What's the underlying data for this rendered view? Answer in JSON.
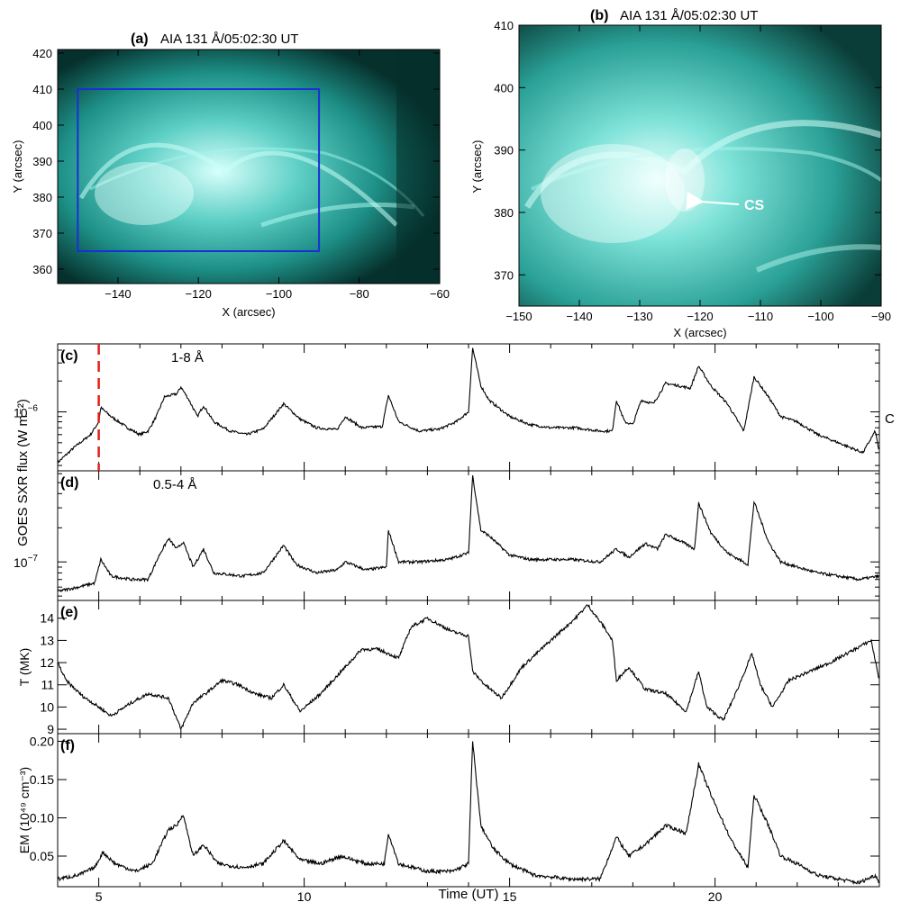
{
  "panels": {
    "a": {
      "label": "(a)",
      "title": "AIA 131 Å/05:02:30 UT",
      "xlabel": "X (arcsec)",
      "ylabel": "Y (arcsec)",
      "xlim": [
        -155,
        -60
      ],
      "ylim": [
        356,
        421
      ],
      "xticks": [
        "-140",
        "-120",
        "-100",
        "-80",
        "-60"
      ],
      "yticks": [
        "360",
        "370",
        "380",
        "390",
        "400",
        "410",
        "420"
      ],
      "box": {
        "x": [
          -150,
          -90
        ],
        "y": [
          365,
          410
        ],
        "color": "#1a2fd6"
      }
    },
    "b": {
      "label": "(b)",
      "title": "AIA 131 Å/05:02:30 UT",
      "xlabel": "X (arcsec)",
      "ylabel": "Y (arcsec)",
      "xlim": [
        -150,
        -90
      ],
      "ylim": [
        365,
        410
      ],
      "xticks": [
        "-150",
        "-140",
        "-130",
        "-120",
        "-110",
        "-100",
        "-90"
      ],
      "yticks": [
        "370",
        "380",
        "390",
        "400",
        "410"
      ],
      "annotation": "CS",
      "annotation_color": "#ffffff"
    }
  },
  "image_colors": {
    "dark": "#06302c",
    "mid": "#1d8f86",
    "bright": "#d8fffb"
  },
  "chart_data": {
    "type": "line",
    "x_label": "Time (UT)",
    "x_range": [
      4,
      24
    ],
    "x_ticks": [
      "5",
      "10",
      "15",
      "20"
    ],
    "marker_line": {
      "x": 5.0,
      "color": "#e0201a"
    },
    "shared_ylabel": "GOES SXR flux (W m⁻²)",
    "right_letter": "C",
    "series": [
      {
        "panel": "(c)",
        "name": "1-8 Å",
        "scale": "log",
        "y_tick_labels": [
          {
            "base": "10",
            "exp": "-6"
          }
        ],
        "data": [
          [
            4.0,
            3.2e-07
          ],
          [
            4.4,
            4.5e-07
          ],
          [
            4.8,
            6e-07
          ],
          [
            5.0,
            8e-07
          ],
          [
            5.05,
            1.1e-06
          ],
          [
            5.3,
            9e-07
          ],
          [
            5.7,
            7e-07
          ],
          [
            6.0,
            6e-07
          ],
          [
            6.2,
            6.5e-07
          ],
          [
            6.4,
            9e-07
          ],
          [
            6.6,
            1.4e-06
          ],
          [
            6.9,
            1.5e-06
          ],
          [
            7.0,
            1.75e-06
          ],
          [
            7.2,
            1.3e-06
          ],
          [
            7.4,
            9e-07
          ],
          [
            7.55,
            1.15e-06
          ],
          [
            7.8,
            8e-07
          ],
          [
            8.2,
            6.5e-07
          ],
          [
            8.6,
            6e-07
          ],
          [
            9.0,
            6.8e-07
          ],
          [
            9.5,
            1.2e-06
          ],
          [
            9.9,
            8.5e-07
          ],
          [
            10.3,
            7e-07
          ],
          [
            10.8,
            6.7e-07
          ],
          [
            11.0,
            9e-07
          ],
          [
            11.4,
            7e-07
          ],
          [
            11.9,
            7.2e-07
          ],
          [
            12.05,
            1.45e-06
          ],
          [
            12.3,
            8e-07
          ],
          [
            12.8,
            6.5e-07
          ],
          [
            13.3,
            6.8e-07
          ],
          [
            13.7,
            8e-07
          ],
          [
            14.0,
            1e-06
          ],
          [
            14.1,
            4.2e-06
          ],
          [
            14.3,
            1.8e-06
          ],
          [
            14.5,
            1.3e-06
          ],
          [
            15.0,
            9e-07
          ],
          [
            15.5,
            7.5e-07
          ],
          [
            16.0,
            7e-07
          ],
          [
            16.6,
            7e-07
          ],
          [
            17.2,
            6.5e-07
          ],
          [
            17.5,
            6.5e-07
          ],
          [
            17.6,
            1.3e-06
          ],
          [
            17.8,
            8e-07
          ],
          [
            18.0,
            7.5e-07
          ],
          [
            18.2,
            1.3e-06
          ],
          [
            18.5,
            1.2e-06
          ],
          [
            18.8,
            1.9e-06
          ],
          [
            19.1,
            1.8e-06
          ],
          [
            19.4,
            1.7e-06
          ],
          [
            19.6,
            2.8e-06
          ],
          [
            19.9,
            1.8e-06
          ],
          [
            20.3,
            1.2e-06
          ],
          [
            20.7,
            6.5e-07
          ],
          [
            20.95,
            2.2e-06
          ],
          [
            21.3,
            1.4e-06
          ],
          [
            21.6,
            9e-07
          ],
          [
            22.0,
            8e-07
          ],
          [
            22.5,
            6e-07
          ],
          [
            23.0,
            5e-07
          ],
          [
            23.6,
            4e-07
          ],
          [
            23.9,
            6.5e-07
          ],
          [
            24.0,
            4e-07
          ]
        ]
      },
      {
        "panel": "(d)",
        "name": "0.5-4 Å",
        "scale": "log",
        "y_tick_labels": [
          {
            "base": "10",
            "exp": "-7"
          }
        ],
        "data": [
          [
            4.0,
            5.5e-08
          ],
          [
            4.5,
            6e-08
          ],
          [
            4.9,
            6.5e-08
          ],
          [
            5.05,
            1.05e-07
          ],
          [
            5.3,
            7.5e-08
          ],
          [
            5.8,
            7e-08
          ],
          [
            6.2,
            7e-08
          ],
          [
            6.5,
            1.2e-07
          ],
          [
            6.7,
            1.6e-07
          ],
          [
            6.9,
            1.3e-07
          ],
          [
            7.05,
            1.5e-07
          ],
          [
            7.3,
            9e-08
          ],
          [
            7.55,
            1.3e-07
          ],
          [
            7.8,
            8e-08
          ],
          [
            8.5,
            7.5e-08
          ],
          [
            9.0,
            8e-08
          ],
          [
            9.5,
            1.4e-07
          ],
          [
            9.8,
            9.5e-08
          ],
          [
            10.3,
            8e-08
          ],
          [
            10.8,
            8.5e-08
          ],
          [
            11.0,
            1e-07
          ],
          [
            11.5,
            8.5e-08
          ],
          [
            12.0,
            9e-08
          ],
          [
            12.05,
            1.9e-07
          ],
          [
            12.3,
            1e-07
          ],
          [
            12.8,
            1e-07
          ],
          [
            13.5,
            1.05e-07
          ],
          [
            14.0,
            1.2e-07
          ],
          [
            14.1,
            5.8e-07
          ],
          [
            14.3,
            1.9e-07
          ],
          [
            14.5,
            1.7e-07
          ],
          [
            15.0,
            1.15e-07
          ],
          [
            15.5,
            1.05e-07
          ],
          [
            16.5,
            1.05e-07
          ],
          [
            17.2,
            1e-07
          ],
          [
            17.6,
            1.3e-07
          ],
          [
            17.9,
            1.1e-07
          ],
          [
            18.3,
            1.45e-07
          ],
          [
            18.6,
            1.3e-07
          ],
          [
            18.8,
            1.75e-07
          ],
          [
            19.2,
            1.5e-07
          ],
          [
            19.5,
            1.3e-07
          ],
          [
            19.6,
            3.3e-07
          ],
          [
            19.9,
            1.8e-07
          ],
          [
            20.3,
            1.2e-07
          ],
          [
            20.8,
            9.5e-08
          ],
          [
            20.95,
            3.4e-07
          ],
          [
            21.3,
            1.5e-07
          ],
          [
            21.6,
            1e-07
          ],
          [
            22.0,
            9e-08
          ],
          [
            22.5,
            8e-08
          ],
          [
            23.0,
            7.5e-08
          ],
          [
            23.5,
            7e-08
          ],
          [
            24.0,
            7.5e-08
          ]
        ]
      },
      {
        "panel": "(e)",
        "ylabel": "T (MK)",
        "scale": "linear",
        "ylim": [
          8.8,
          14.8
        ],
        "y_ticks": [
          "9",
          "10",
          "11",
          "12",
          "13",
          "14"
        ],
        "data": [
          [
            4.0,
            12.0
          ],
          [
            4.2,
            11.2
          ],
          [
            4.6,
            10.5
          ],
          [
            5.0,
            10.0
          ],
          [
            5.3,
            9.6
          ],
          [
            5.8,
            10.2
          ],
          [
            6.2,
            10.6
          ],
          [
            6.7,
            10.4
          ],
          [
            7.0,
            9.0
          ],
          [
            7.3,
            10.2
          ],
          [
            7.6,
            10.6
          ],
          [
            8.0,
            11.2
          ],
          [
            8.4,
            11.0
          ],
          [
            8.8,
            10.6
          ],
          [
            9.2,
            10.4
          ],
          [
            9.5,
            11.0
          ],
          [
            9.9,
            9.8
          ],
          [
            10.4,
            10.6
          ],
          [
            10.9,
            11.6
          ],
          [
            11.4,
            12.6
          ],
          [
            11.8,
            12.6
          ],
          [
            12.3,
            12.2
          ],
          [
            12.6,
            13.6
          ],
          [
            13.0,
            14.0
          ],
          [
            13.6,
            13.4
          ],
          [
            14.0,
            13.2
          ],
          [
            14.1,
            11.6
          ],
          [
            14.4,
            11.0
          ],
          [
            14.8,
            10.4
          ],
          [
            15.3,
            11.8
          ],
          [
            16.0,
            13.0
          ],
          [
            16.6,
            14.0
          ],
          [
            16.9,
            14.6
          ],
          [
            17.3,
            13.6
          ],
          [
            17.5,
            13.0
          ],
          [
            17.6,
            11.2
          ],
          [
            17.9,
            11.8
          ],
          [
            18.3,
            10.8
          ],
          [
            18.8,
            10.6
          ],
          [
            19.3,
            9.8
          ],
          [
            19.6,
            11.6
          ],
          [
            19.8,
            10.0
          ],
          [
            20.2,
            9.4
          ],
          [
            20.5,
            10.6
          ],
          [
            20.9,
            12.4
          ],
          [
            21.1,
            11.0
          ],
          [
            21.4,
            10.0
          ],
          [
            21.8,
            11.2
          ],
          [
            22.3,
            11.6
          ],
          [
            22.8,
            12.0
          ],
          [
            23.4,
            12.6
          ],
          [
            23.8,
            13.0
          ],
          [
            24.0,
            11.2
          ]
        ]
      },
      {
        "panel": "(f)",
        "ylabel": "EM (10⁴⁹ cm⁻³)",
        "scale": "linear",
        "ylim": [
          0.01,
          0.21
        ],
        "y_ticks": [
          "0.05",
          "0.10",
          "0.15",
          "0.20"
        ],
        "data": [
          [
            4.0,
            0.02
          ],
          [
            4.5,
            0.025
          ],
          [
            4.9,
            0.035
          ],
          [
            5.1,
            0.055
          ],
          [
            5.4,
            0.04
          ],
          [
            5.9,
            0.03
          ],
          [
            6.3,
            0.04
          ],
          [
            6.7,
            0.085
          ],
          [
            6.9,
            0.09
          ],
          [
            7.05,
            0.105
          ],
          [
            7.3,
            0.05
          ],
          [
            7.55,
            0.065
          ],
          [
            7.9,
            0.04
          ],
          [
            8.5,
            0.035
          ],
          [
            9.0,
            0.04
          ],
          [
            9.5,
            0.07
          ],
          [
            9.9,
            0.045
          ],
          [
            10.4,
            0.04
          ],
          [
            10.9,
            0.05
          ],
          [
            11.5,
            0.04
          ],
          [
            11.95,
            0.04
          ],
          [
            12.05,
            0.08
          ],
          [
            12.3,
            0.04
          ],
          [
            13.0,
            0.03
          ],
          [
            13.6,
            0.03
          ],
          [
            14.0,
            0.04
          ],
          [
            14.1,
            0.2
          ],
          [
            14.3,
            0.09
          ],
          [
            14.6,
            0.06
          ],
          [
            15.0,
            0.04
          ],
          [
            15.6,
            0.025
          ],
          [
            16.5,
            0.02
          ],
          [
            17.2,
            0.02
          ],
          [
            17.6,
            0.075
          ],
          [
            17.9,
            0.05
          ],
          [
            18.3,
            0.065
          ],
          [
            18.8,
            0.09
          ],
          [
            19.3,
            0.08
          ],
          [
            19.6,
            0.17
          ],
          [
            19.9,
            0.13
          ],
          [
            20.4,
            0.07
          ],
          [
            20.8,
            0.035
          ],
          [
            20.95,
            0.13
          ],
          [
            21.3,
            0.09
          ],
          [
            21.6,
            0.05
          ],
          [
            22.0,
            0.04
          ],
          [
            22.5,
            0.025
          ],
          [
            23.0,
            0.02
          ],
          [
            23.5,
            0.015
          ],
          [
            23.9,
            0.025
          ],
          [
            24.0,
            0.015
          ]
        ]
      }
    ]
  }
}
